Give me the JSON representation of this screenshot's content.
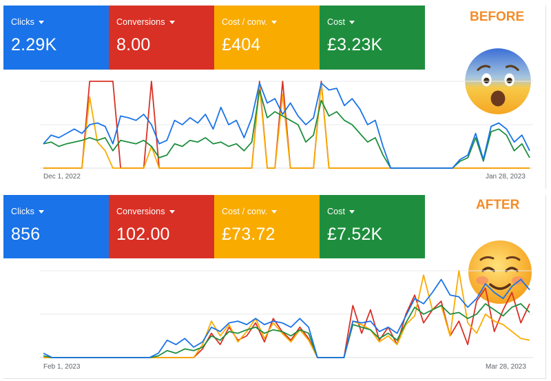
{
  "colors": {
    "clicks": "#1a73e8",
    "conversions": "#d93025",
    "cost_per_conv": "#f9ab00",
    "cost": "#1e8e3e",
    "tag": "#f28c28",
    "grid": "#e8eaed"
  },
  "panels": [
    {
      "tag": "BEFORE",
      "emoji_icon": "anxious-face-icon",
      "metrics": [
        {
          "label": "Clicks",
          "value": "2.29K",
          "color": "#1a73e8"
        },
        {
          "label": "Conversions",
          "value": "8.00",
          "color": "#d93025"
        },
        {
          "label": "Cost / conv.",
          "value": "£404",
          "color": "#f9ab00"
        },
        {
          "label": "Cost",
          "value": "£3.23K",
          "color": "#1e8e3e"
        }
      ],
      "x_start_label": "Dec 1, 2022",
      "x_end_label": "Jan 28, 2023"
    },
    {
      "tag": "AFTER",
      "emoji_icon": "smiling-face-icon",
      "metrics": [
        {
          "label": "Clicks",
          "value": "856",
          "color": "#1a73e8"
        },
        {
          "label": "Conversions",
          "value": "102.00",
          "color": "#d93025"
        },
        {
          "label": "Cost / conv.",
          "value": "£73.72",
          "color": "#f9ab00"
        },
        {
          "label": "Cost",
          "value": "£7.52K",
          "color": "#1e8e3e"
        }
      ],
      "x_start_label": "Feb 1, 2023",
      "x_end_label": "Mar 28, 2023"
    }
  ],
  "chart_data": [
    {
      "type": "line",
      "x_start": "Dec 1, 2022",
      "x_end": "Jan 28, 2023",
      "ylim": [
        0,
        1
      ],
      "grid": true,
      "y_normalized": true,
      "series": [
        {
          "key": "clicks",
          "values": [
            0.28,
            0.38,
            0.35,
            0.4,
            0.45,
            0.4,
            0.5,
            0.52,
            0.48,
            0.28,
            0.6,
            0.58,
            0.55,
            0.62,
            0.5,
            0.28,
            0.32,
            0.55,
            0.5,
            0.58,
            0.52,
            0.62,
            0.45,
            0.7,
            0.5,
            0.55,
            0.35,
            0.58,
            0.98,
            0.75,
            0.8,
            0.62,
            0.75,
            0.6,
            0.5,
            0.58,
            0.98,
            0.9,
            0.92,
            0.72,
            0.8,
            0.68,
            0.5,
            0.55,
            0.25,
            0,
            0,
            0,
            0,
            0,
            0,
            0,
            0,
            0,
            0.1,
            0.15,
            0.4,
            0.1,
            0.48,
            0.52,
            0.45,
            0.3,
            0.38,
            0.2
          ]
        },
        {
          "key": "cost",
          "values": [
            0.28,
            0.3,
            0.25,
            0.28,
            0.3,
            0.32,
            0.35,
            0.32,
            0.35,
            0.2,
            0.32,
            0.3,
            0.28,
            0.32,
            0.25,
            0.12,
            0.15,
            0.28,
            0.25,
            0.32,
            0.3,
            0.35,
            0.28,
            0.3,
            0.25,
            0.28,
            0.2,
            0.3,
            0.9,
            0.58,
            0.65,
            0.6,
            0.55,
            0.5,
            0.3,
            0.38,
            0.78,
            0.6,
            0.65,
            0.55,
            0.5,
            0.4,
            0.3,
            0.35,
            0.15,
            0,
            0,
            0,
            0,
            0,
            0,
            0,
            0,
            0,
            0.08,
            0.12,
            0.35,
            0.08,
            0.42,
            0.45,
            0.38,
            0.2,
            0.28,
            0.12
          ]
        },
        {
          "key": "conversions",
          "values": [
            0,
            0,
            0,
            0,
            0,
            0,
            1,
            1,
            1,
            1,
            0,
            0,
            0,
            0,
            1,
            0,
            0,
            0,
            0,
            0,
            0,
            0,
            0,
            0,
            0,
            0,
            0,
            0,
            1,
            0,
            0,
            1,
            0,
            0,
            0,
            0,
            1,
            0,
            0,
            0,
            0,
            0,
            0,
            0,
            0,
            0,
            0,
            0,
            0,
            0,
            0,
            0,
            0,
            0,
            0,
            0,
            0,
            0,
            0,
            0,
            0,
            0,
            0,
            0
          ]
        },
        {
          "key": "cost_per_conv",
          "values": [
            0,
            0,
            0,
            0,
            0,
            0,
            0.82,
            0.3,
            0.2,
            0,
            0,
            0,
            0,
            0,
            0.25,
            0,
            0,
            0,
            0,
            0,
            0,
            0,
            0,
            0,
            0,
            0,
            0,
            0,
            0.95,
            0,
            0,
            0.85,
            0,
            0,
            0,
            0,
            0.98,
            0,
            0,
            0,
            0,
            0,
            0,
            0,
            0,
            0,
            0,
            0,
            0,
            0,
            0,
            0,
            0,
            0,
            0,
            0,
            0,
            0,
            0,
            0,
            0,
            0,
            0,
            0
          ]
        }
      ]
    },
    {
      "type": "line",
      "x_start": "Feb 1, 2023",
      "x_end": "Mar 28, 2023",
      "ylim": [
        0,
        1
      ],
      "grid": true,
      "y_normalized": true,
      "series": [
        {
          "key": "clicks",
          "values": [
            0.05,
            0,
            0,
            0,
            0,
            0,
            0,
            0,
            0,
            0,
            0,
            0,
            0,
            0.05,
            0.2,
            0.15,
            0.22,
            0.12,
            0.18,
            0.35,
            0.3,
            0.4,
            0.42,
            0.38,
            0.45,
            0.38,
            0.42,
            0.4,
            0.35,
            0.45,
            0.35,
            0,
            0,
            0,
            0,
            0.42,
            0.4,
            0.42,
            0.3,
            0.35,
            0.28,
            0.48,
            0.68,
            0.62,
            0.75,
            0.9,
            0.72,
            0.7,
            0.58,
            0.68,
            0.85,
            0.75,
            0.68,
            0.82,
            0.9,
            0.78
          ]
        },
        {
          "key": "cost",
          "values": [
            0.02,
            0,
            0,
            0,
            0,
            0,
            0,
            0,
            0,
            0,
            0,
            0,
            0,
            0.02,
            0.08,
            0.05,
            0.1,
            0.08,
            0.12,
            0.25,
            0.2,
            0.3,
            0.28,
            0.32,
            0.35,
            0.28,
            0.32,
            0.3,
            0.25,
            0.32,
            0.28,
            0,
            0,
            0,
            0,
            0.38,
            0.35,
            0.32,
            0.22,
            0.28,
            0.2,
            0.4,
            0.58,
            0.5,
            0.55,
            0.6,
            0.5,
            0.52,
            0.45,
            0.5,
            0.62,
            0.55,
            0.48,
            0.58,
            0.62,
            0.52
          ]
        },
        {
          "key": "conversions",
          "values": [
            0,
            0,
            0,
            0,
            0,
            0,
            0,
            0,
            0,
            0,
            0,
            0,
            0,
            0,
            0,
            0,
            0,
            0,
            0.1,
            0.28,
            0.15,
            0.35,
            0.2,
            0.25,
            0.4,
            0.18,
            0.45,
            0.3,
            0.2,
            0.35,
            0.22,
            0,
            0,
            0,
            0,
            0.6,
            0.28,
            0.55,
            0.2,
            0.35,
            0.15,
            0.5,
            0.72,
            0.4,
            0.55,
            0.65,
            0.25,
            0.42,
            0.15,
            0.65,
            0.8,
            0.3,
            0.55,
            0.75,
            0.4,
            0.62
          ]
        },
        {
          "key": "cost_per_conv",
          "values": [
            0,
            0,
            0,
            0,
            0,
            0,
            0,
            0,
            0,
            0,
            0,
            0,
            0,
            0,
            0,
            0,
            0,
            0,
            0.15,
            0.42,
            0.25,
            0.38,
            0.18,
            0.3,
            0.45,
            0.22,
            0.4,
            0.28,
            0.18,
            0.32,
            0.2,
            0,
            0,
            0,
            0,
            0.42,
            0.38,
            0.32,
            0.18,
            0.25,
            0.15,
            0.38,
            0.48,
            0.95,
            0.55,
            0.6,
            0.25,
            1.0,
            0.4,
            0.28,
            0.5,
            0.42,
            0.38,
            0.3,
            0.22,
            0.2
          ]
        }
      ]
    }
  ]
}
